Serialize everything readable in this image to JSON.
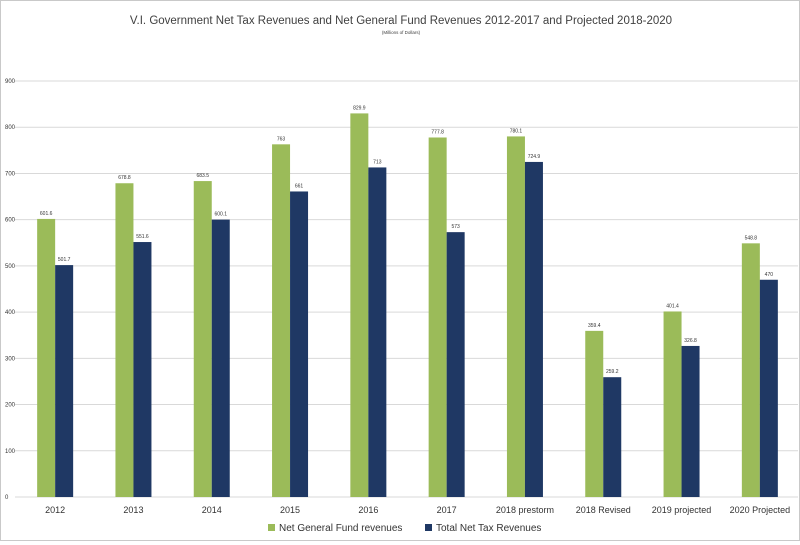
{
  "chart_data": {
    "type": "bar",
    "title": "V.I. Government Net Tax Revenues and Net General Fund Revenues 2012-2017 and Projected 2018-2020",
    "subtitle": "(Millions of Dollars)",
    "categories": [
      "2012",
      "2013",
      "2014",
      "2015",
      "2016",
      "2017",
      "2018 prestorm",
      "2018 Revised",
      "2019 projected",
      "2020 Projected"
    ],
    "series": [
      {
        "name": "Net  General Fund revenues",
        "color": "#9bbb59",
        "values": [
          601.6,
          678.8,
          683.5,
          763,
          829.9,
          777.8,
          780.1,
          359.4,
          401.4,
          548.8
        ],
        "labels": [
          "601.6",
          "678.8",
          "683.5",
          "763",
          "829.9",
          "777.8",
          "780.1",
          "359.4",
          "401.4",
          "548.8"
        ]
      },
      {
        "name": "Total Net Tax Revenues",
        "color": "#1f3864",
        "values": [
          501.7,
          551.6,
          600.1,
          661,
          713,
          573,
          724.9,
          259.2,
          326.8,
          470
        ],
        "labels": [
          "501.7",
          "551.6",
          "600.1",
          "661",
          "713",
          "573",
          "724.9",
          "259.2",
          "326.8",
          "470"
        ]
      }
    ],
    "ylim": [
      0,
      900
    ],
    "yticks": [
      0,
      100,
      200,
      300,
      400,
      500,
      600,
      700,
      800,
      900
    ],
    "grid": true,
    "legend": "bottom-center"
  }
}
